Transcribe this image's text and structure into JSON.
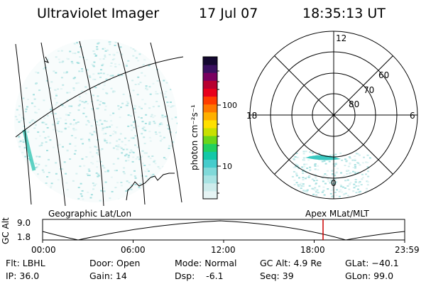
{
  "header": {
    "instrument": "Ultraviolet Imager",
    "date": "17 Jul 07",
    "time": "18:35:13 UT"
  },
  "left_panel": {
    "caption": "Geographic Lat/Lon"
  },
  "right_panel": {
    "caption": "Apex MLat/MLT",
    "mlt_labels": {
      "top": "12",
      "left": "18",
      "right": "6",
      "bottom": "0"
    },
    "lat_labels": [
      "60",
      "70",
      "80"
    ]
  },
  "colorbar": {
    "unit_label": "photon cm⁻²s⁻¹",
    "tick_labels": [
      "100",
      "10"
    ],
    "colors": [
      "#e6f4f4",
      "#cdecec",
      "#a8e3e3",
      "#80d9d9",
      "#45cccc",
      "#12c8a8",
      "#22d060",
      "#6ad61a",
      "#c8e000",
      "#ffe000",
      "#ffb000",
      "#ff7800",
      "#ff3c00",
      "#e8001c",
      "#b80030",
      "#7a0060",
      "#3a1060",
      "#140830"
    ]
  },
  "timeline": {
    "y_label": "GC Alt",
    "y_max_label": "9.0",
    "y_min_label": "1.8",
    "ticks": [
      "00:00",
      "06:00",
      "12:00",
      "18:00",
      "23:59"
    ],
    "current_marker_color": "#cc0000"
  },
  "info": {
    "filter": "Flt: LBHL",
    "ip": "IP: 36.0",
    "door": "Door: Open",
    "gain": "Gain: 14",
    "mode": "Mode: Normal",
    "dsp": "Dsp:    -6.1",
    "gc_alt": "GC Alt: 4.9 Re",
    "seq": "Seq: 39",
    "glat": "GLat: −40.1",
    "glon": "GLon: 99.0"
  }
}
